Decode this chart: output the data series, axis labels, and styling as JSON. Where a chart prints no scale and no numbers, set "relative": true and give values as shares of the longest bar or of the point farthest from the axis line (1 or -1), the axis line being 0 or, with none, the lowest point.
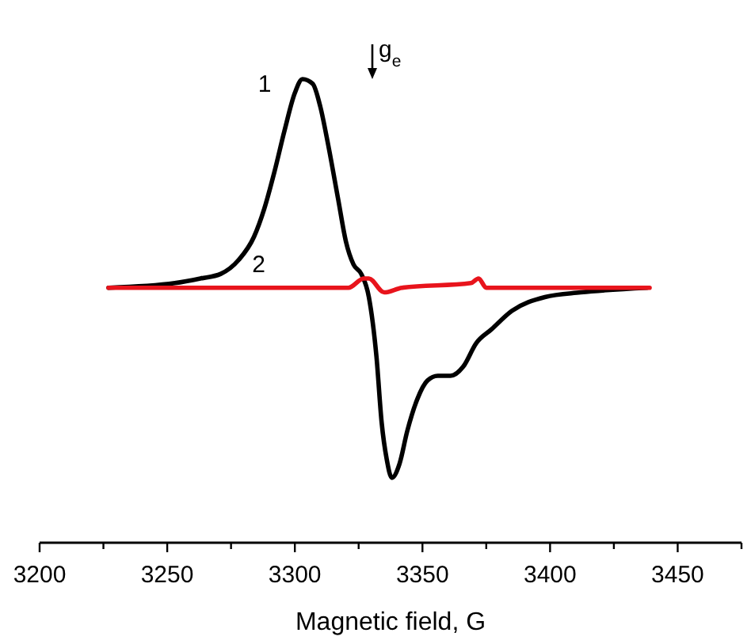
{
  "chart_data": {
    "type": "line",
    "relative": true,
    "xlabel": "Magnetic field, G",
    "xlim": [
      3200,
      3475
    ],
    "xticks": [
      3200,
      {
        "value": 3225,
        "label": null
      },
      3250,
      {
        "value": 3275,
        "label": null
      },
      3300,
      {
        "value": 3325,
        "label": null
      },
      3350,
      {
        "value": 3375,
        "label": null
      },
      3400,
      {
        "value": 3425,
        "label": null
      },
      3450,
      {
        "value": 3475,
        "label": null
      }
    ],
    "annotations": [
      "g$_{e}$"
    ],
    "series": [
      {
        "name": "1",
        "color": "#000000",
        "x": [
          3227,
          3253,
          3263,
          3271,
          3278,
          3284,
          3288,
          3292,
          3296,
          3300,
          3303,
          3307,
          3310,
          3313,
          3317,
          3320,
          3323,
          3326,
          3329,
          3332,
          3334,
          3336,
          3338,
          3341,
          3344,
          3348,
          3352,
          3356,
          3361,
          3366,
          3371,
          3377,
          3385,
          3398,
          3412,
          3438
        ],
        "values": [
          0.55,
          0.56,
          0.57,
          0.58,
          0.61,
          0.66,
          0.72,
          0.8,
          0.89,
          0.97,
          1,
          0.99,
          0.94,
          0.86,
          0.74,
          0.65,
          0.6,
          0.58,
          0.53,
          0.4,
          0.26,
          0.18,
          0.14,
          0.17,
          0.24,
          0.31,
          0.35,
          0.36,
          0.36,
          0.38,
          0.43,
          0.46,
          0.5,
          0.53,
          0.54,
          0.55
        ]
      },
      {
        "name": "2",
        "color": "#e8141c",
        "x": [
          3227,
          3287,
          3321,
          3327,
          3329,
          3335,
          3342,
          3369,
          3372,
          3375,
          3439
        ],
        "values": [
          0.55,
          0.55,
          0.55,
          0.57,
          0.57,
          0.54,
          0.55,
          0.56,
          0.57,
          0.55,
          0.55
        ]
      }
    ]
  }
}
